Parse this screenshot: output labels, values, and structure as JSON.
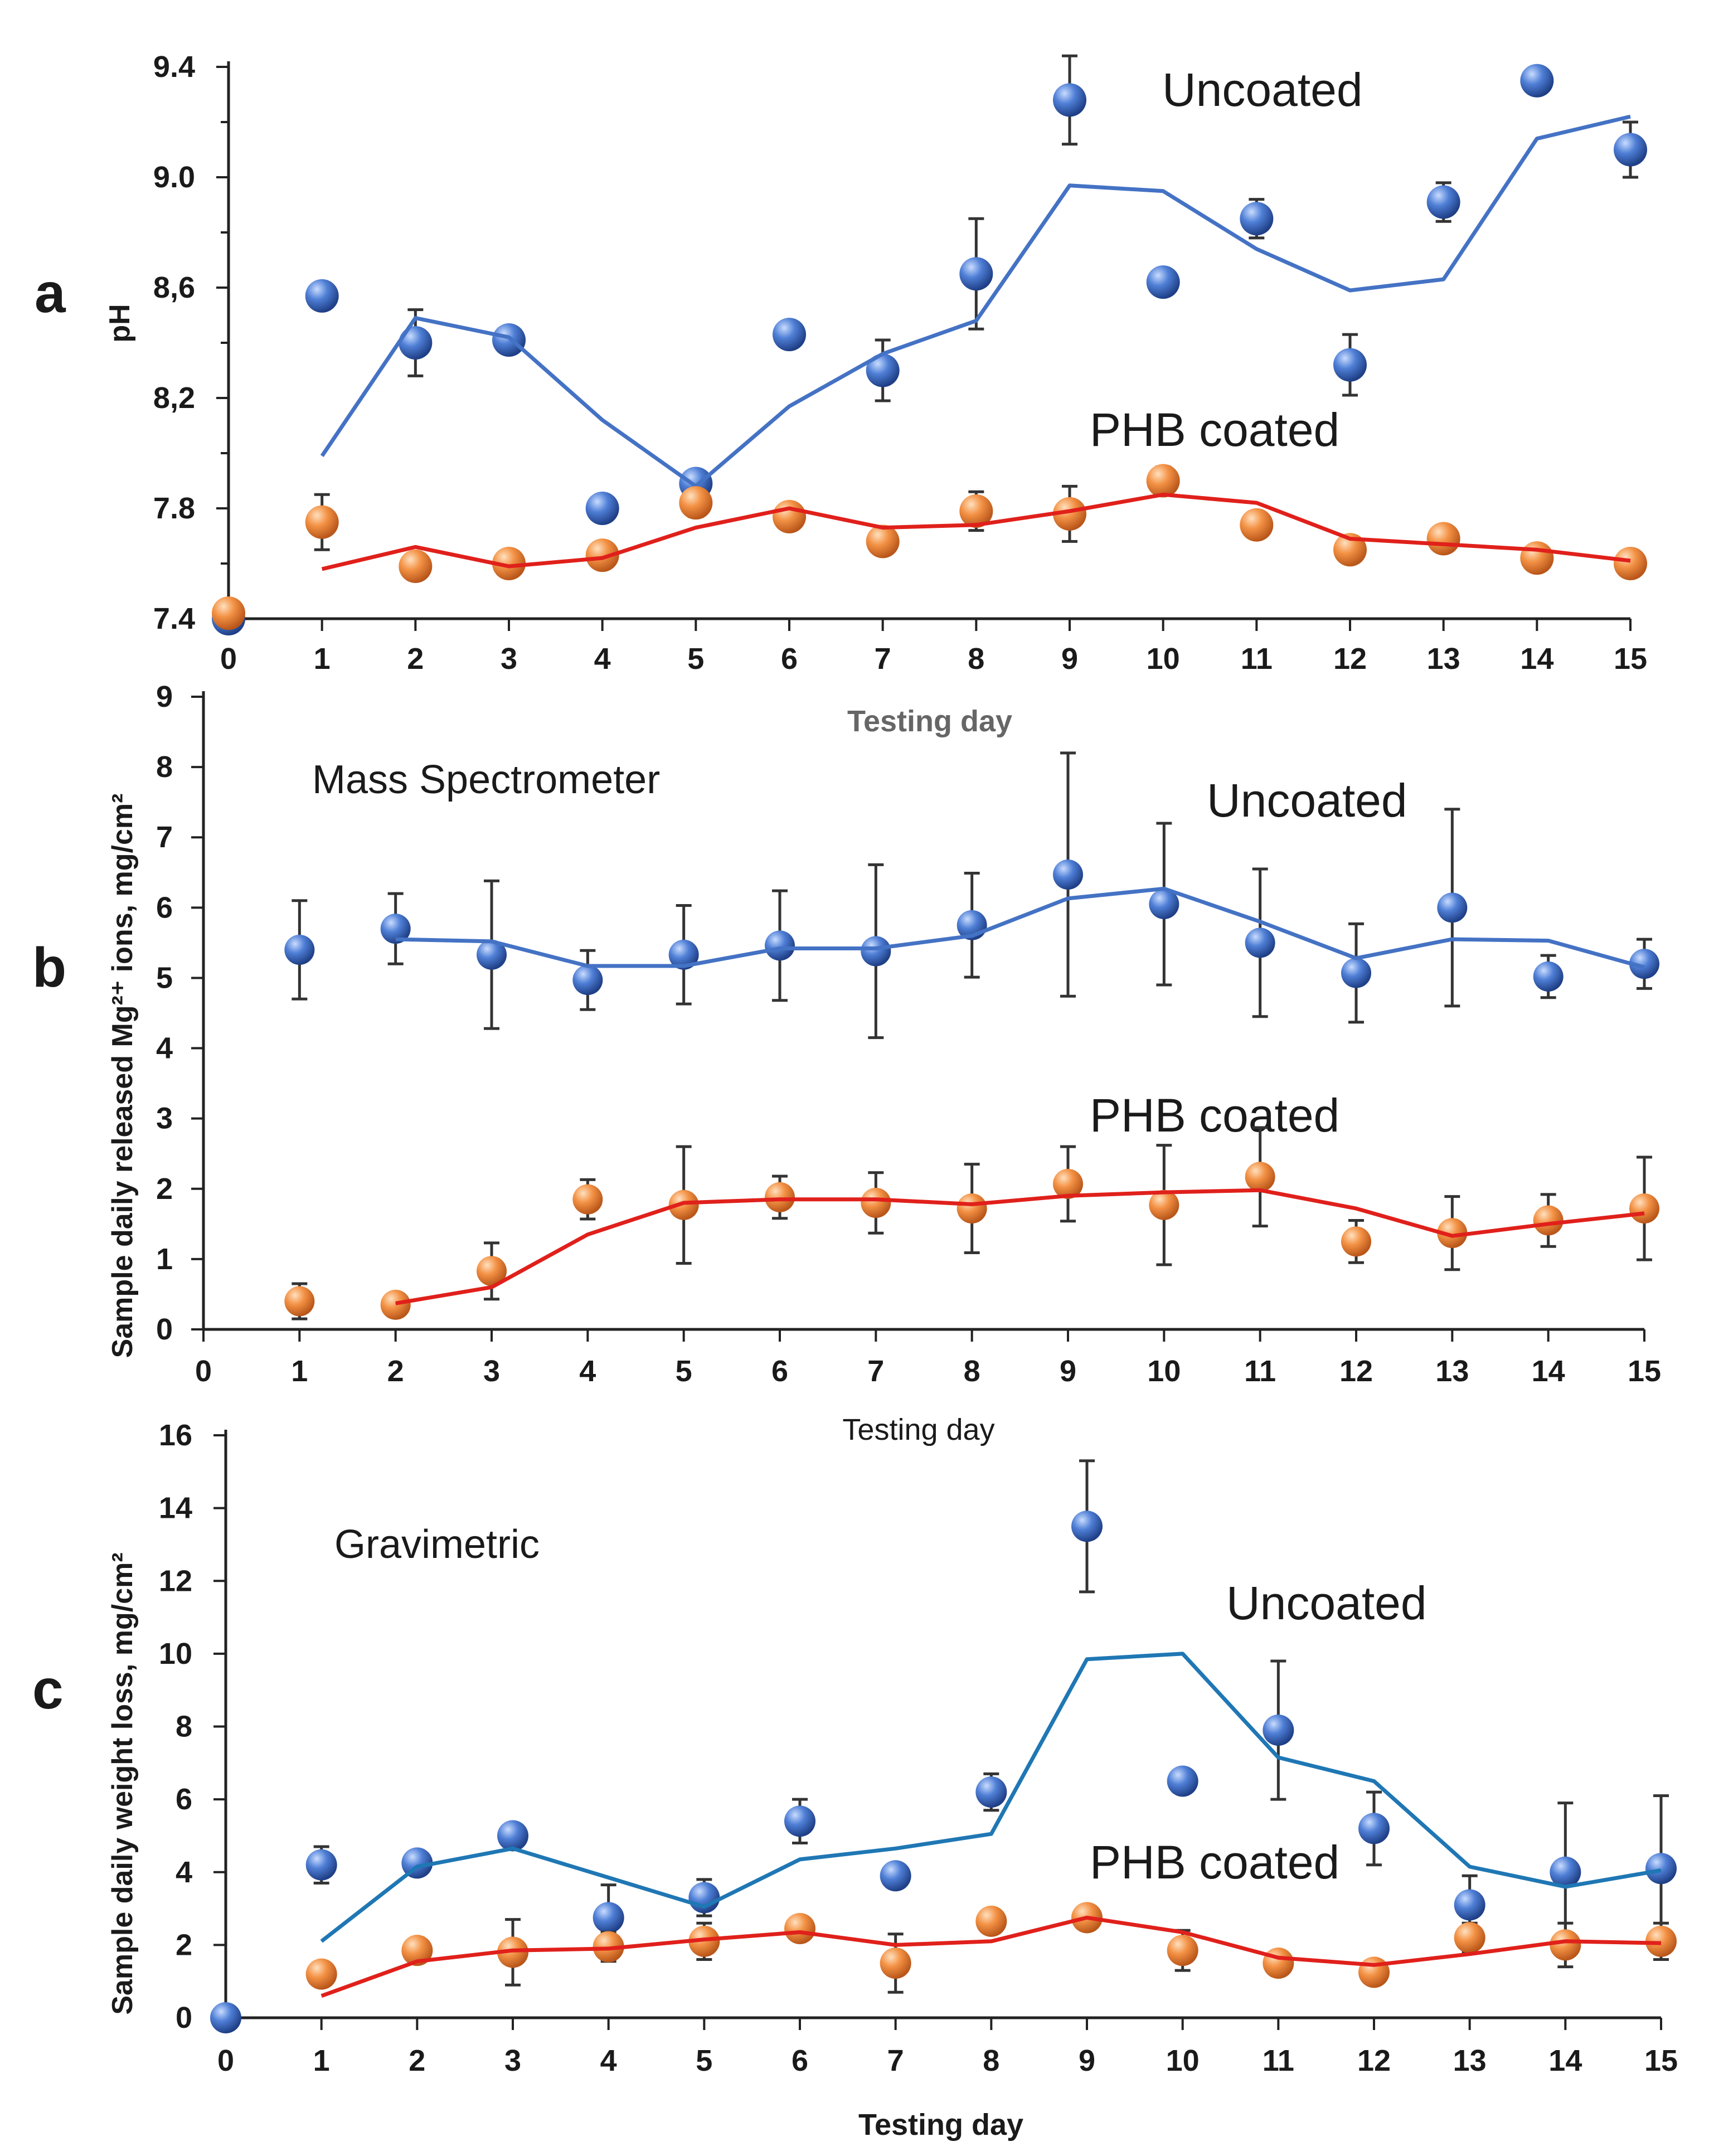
{
  "colors": {
    "uncoated_marker": "#3d6fc9",
    "uncoated_line_a": "#4472c4",
    "uncoated_line_c": "#1f77b4",
    "coated_marker": "#f08a3a",
    "coated_line": "#e0201b"
  },
  "chart_data": [
    {
      "type": "scatter",
      "panel_letter": "a",
      "title": "",
      "xlabel": "Testing day",
      "ylabel": "pH",
      "xlim": [
        0,
        15
      ],
      "ylim": [
        7.4,
        9.4
      ],
      "x_ticks": [
        "0",
        "1",
        "2",
        "3",
        "4",
        "5",
        "6",
        "7",
        "8",
        "9",
        "10",
        "11",
        "12",
        "13",
        "14",
        "15"
      ],
      "y_ticks": [
        "7.4",
        "7.8",
        "8,2",
        "8,6",
        "9.0",
        "9.4"
      ],
      "annotations": {
        "uncoated": "Uncoated",
        "coated": "PHB coated"
      },
      "series": [
        {
          "name": "Uncoated",
          "x": [
            0,
            1,
            2,
            3,
            4,
            5,
            6,
            7,
            8,
            9,
            10,
            11,
            12,
            13,
            14,
            15
          ],
          "values": [
            7.4,
            8.57,
            8.4,
            8.41,
            7.8,
            7.89,
            8.43,
            8.3,
            8.65,
            9.28,
            8.62,
            8.85,
            8.32,
            8.91,
            9.35,
            9.1
          ],
          "errors": [
            0,
            0.02,
            0.12,
            0.02,
            0,
            0.02,
            0.02,
            0.11,
            0.2,
            0.16,
            0,
            0.07,
            0.11,
            0.07,
            0.03,
            0.1
          ]
        },
        {
          "name": "Uncoated trend",
          "x": [
            1,
            2,
            3,
            4,
            5,
            6,
            7,
            8,
            9,
            10,
            11,
            12,
            13,
            14,
            15
          ],
          "values": [
            7.99,
            8.49,
            8.42,
            8.12,
            7.88,
            8.17,
            8.36,
            8.48,
            8.97,
            8.95,
            8.74,
            8.59,
            8.63,
            9.14,
            9.22
          ]
        },
        {
          "name": "PHB coated",
          "x": [
            0,
            1,
            2,
            3,
            4,
            5,
            6,
            7,
            8,
            9,
            10,
            11,
            12,
            13,
            14,
            15
          ],
          "values": [
            7.42,
            7.75,
            7.59,
            7.6,
            7.63,
            7.82,
            7.77,
            7.68,
            7.79,
            7.78,
            7.9,
            7.74,
            7.65,
            7.69,
            7.62,
            7.6
          ],
          "errors": [
            0,
            0.1,
            0,
            0,
            0,
            0.05,
            0.04,
            0,
            0.07,
            0.1,
            0.05,
            0,
            0,
            0.03,
            0,
            0
          ]
        },
        {
          "name": "PHB coated trend",
          "x": [
            1,
            2,
            3,
            4,
            5,
            6,
            7,
            8,
            9,
            10,
            11,
            12,
            13,
            14,
            15
          ],
          "values": [
            7.58,
            7.66,
            7.59,
            7.62,
            7.73,
            7.8,
            7.73,
            7.74,
            7.79,
            7.85,
            7.82,
            7.69,
            7.67,
            7.65,
            7.61
          ]
        }
      ]
    },
    {
      "type": "scatter",
      "panel_letter": "b",
      "title": "Mass Spectrometer",
      "xlabel": "Testing day",
      "ylabel": "Sample daily released Mg²⁺ ions, mg/cm²",
      "xlim": [
        0,
        15
      ],
      "ylim": [
        0,
        9
      ],
      "x_ticks": [
        "0",
        "1",
        "2",
        "3",
        "4",
        "5",
        "6",
        "7",
        "8",
        "9",
        "10",
        "11",
        "12",
        "13",
        "14",
        "15"
      ],
      "y_ticks": [
        "0",
        "1",
        "2",
        "3",
        "4",
        "5",
        "6",
        "7",
        "8",
        "9"
      ],
      "annotations": {
        "uncoated": "Uncoated",
        "coated": "PHB coated"
      },
      "series": [
        {
          "name": "Uncoated",
          "x": [
            1,
            2,
            3,
            4,
            5,
            6,
            7,
            8,
            9,
            10,
            11,
            12,
            13,
            14,
            15
          ],
          "values": [
            5.4,
            5.7,
            5.33,
            4.97,
            5.33,
            5.46,
            5.38,
            5.75,
            6.47,
            6.05,
            5.5,
            5.07,
            6.0,
            5.02,
            5.2
          ],
          "errors": [
            0.7,
            0.5,
            1.05,
            0.42,
            0.7,
            0.78,
            1.23,
            0.74,
            1.73,
            1.15,
            1.05,
            0.7,
            1.4,
            0.3,
            0.35
          ]
        },
        {
          "name": "Uncoated trend",
          "x": [
            2,
            3,
            4,
            5,
            6,
            7,
            8,
            9,
            10,
            11,
            12,
            13,
            14,
            15
          ],
          "values": [
            5.55,
            5.52,
            5.17,
            5.17,
            5.42,
            5.42,
            5.6,
            6.13,
            6.27,
            5.8,
            5.28,
            5.55,
            5.53,
            5.15
          ]
        },
        {
          "name": "PHB coated",
          "x": [
            1,
            2,
            3,
            4,
            5,
            6,
            7,
            8,
            9,
            10,
            11,
            12,
            13,
            14,
            15
          ],
          "values": [
            0.4,
            0.35,
            0.83,
            1.85,
            1.77,
            1.88,
            1.8,
            1.72,
            2.07,
            1.77,
            2.17,
            1.25,
            1.37,
            1.55,
            1.72
          ],
          "errors": [
            0.25,
            0.1,
            0.4,
            0.28,
            0.83,
            0.3,
            0.43,
            0.63,
            0.53,
            0.85,
            0.7,
            0.3,
            0.52,
            0.37,
            0.73
          ]
        },
        {
          "name": "PHB coated trend",
          "x": [
            2,
            3,
            4,
            5,
            6,
            7,
            8,
            9,
            10,
            11,
            12,
            13,
            14,
            15
          ],
          "values": [
            0.37,
            0.6,
            1.35,
            1.8,
            1.85,
            1.85,
            1.78,
            1.9,
            1.95,
            1.98,
            1.72,
            1.33,
            1.5,
            1.65
          ]
        }
      ]
    },
    {
      "type": "scatter",
      "panel_letter": "c",
      "title": "Gravimetric",
      "xlabel": "Testing day",
      "ylabel": "Sample daily weight loss, mg/cm²",
      "xlim": [
        0,
        15
      ],
      "ylim": [
        0,
        16
      ],
      "x_ticks": [
        "0",
        "1",
        "2",
        "3",
        "4",
        "5",
        "6",
        "7",
        "8",
        "9",
        "10",
        "11",
        "12",
        "13",
        "14",
        "15"
      ],
      "y_ticks": [
        "0",
        "2",
        "4",
        "6",
        "8",
        "10",
        "12",
        "14",
        "16"
      ],
      "annotations": {
        "uncoated": "Uncoated",
        "coated": "PHB coated"
      },
      "series": [
        {
          "name": "Uncoated",
          "x": [
            0,
            1,
            2,
            3,
            4,
            5,
            6,
            7,
            8,
            9,
            10,
            11,
            12,
            13,
            14,
            15
          ],
          "values": [
            0,
            4.2,
            4.25,
            5.0,
            2.75,
            3.3,
            5.4,
            3.9,
            6.2,
            13.5,
            6.5,
            7.9,
            5.2,
            3.1,
            4.0,
            4.1
          ],
          "errors": [
            0,
            0.5,
            0.2,
            0.3,
            0.9,
            0.5,
            0.6,
            0,
            0.5,
            1.8,
            0,
            1.9,
            1.0,
            0.8,
            1.9,
            2.0
          ]
        },
        {
          "name": "Uncoated trend",
          "x": [
            1,
            2,
            3,
            4,
            5,
            6,
            7,
            8,
            9,
            10,
            11,
            12,
            13,
            14,
            15
          ],
          "values": [
            2.1,
            4.15,
            4.65,
            3.85,
            3.05,
            4.35,
            4.65,
            5.05,
            9.85,
            10.0,
            7.15,
            6.5,
            4.15,
            3.6,
            4.05
          ]
        },
        {
          "name": "PHB coated",
          "x": [
            1,
            2,
            3,
            4,
            5,
            6,
            7,
            8,
            9,
            10,
            11,
            12,
            13,
            14,
            15
          ],
          "values": [
            1.2,
            1.85,
            1.8,
            1.95,
            2.1,
            2.45,
            1.5,
            2.65,
            2.75,
            1.85,
            1.5,
            1.25,
            2.2,
            2.0,
            2.1
          ],
          "errors": [
            0.3,
            0.2,
            0.9,
            0.4,
            0.5,
            0.3,
            0.8,
            0.2,
            0.3,
            0.55,
            0.2,
            0.2,
            0.4,
            0.6,
            0.5
          ]
        },
        {
          "name": "PHB coated trend",
          "x": [
            1,
            2,
            3,
            4,
            5,
            6,
            7,
            8,
            9,
            10,
            11,
            12,
            13,
            14,
            15
          ],
          "values": [
            0.6,
            1.55,
            1.85,
            1.9,
            2.15,
            2.35,
            2.0,
            2.1,
            2.75,
            2.35,
            1.65,
            1.45,
            1.75,
            2.1,
            2.05
          ]
        }
      ]
    }
  ]
}
